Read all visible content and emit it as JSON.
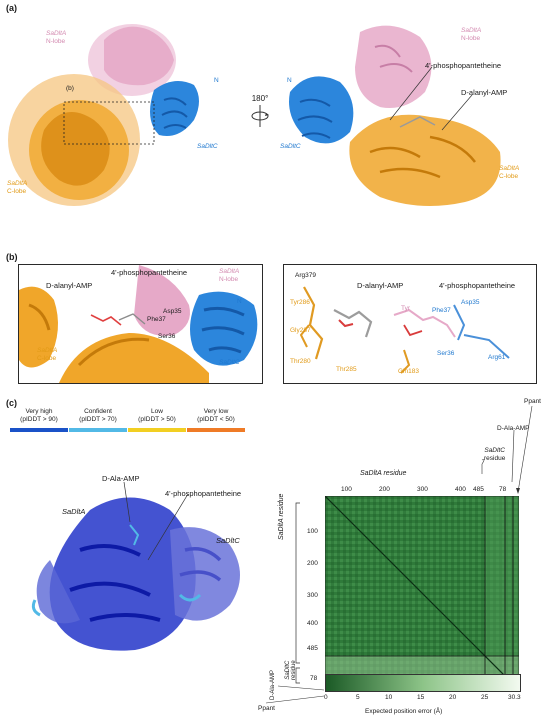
{
  "panel_a": {
    "label": "(a)",
    "inset_label": "(b)",
    "rotation": "180°",
    "left": {
      "n_lobe": [
        "SaDltA",
        "N-lobe"
      ],
      "c_lobe": [
        "SaDltA",
        "C-lobe"
      ],
      "dltc": "SaDltC",
      "n_term": "N"
    },
    "right": {
      "n_lobe": [
        "SaDltA",
        "N-lobe"
      ],
      "c_lobe": [
        "SaDltA",
        "C-lobe"
      ],
      "dltc": "SaDltC",
      "n_term": "N",
      "pant": "4'-phosphopantetheine",
      "amp": "D-alanyl-AMP"
    }
  },
  "panel_b": {
    "label": "(b)",
    "left": {
      "amp": "D-alanyl-AMP",
      "pant": "4'-phosphopantetheine",
      "n_lobe": [
        "SaDltA",
        "N-lobe"
      ],
      "c_lobe": [
        "SaDltA",
        "C-lobe"
      ],
      "dltc": "SaDltC",
      "n_term": "N",
      "res": [
        "Asp35",
        "Phe37",
        "Ser36"
      ]
    },
    "right": {
      "amp": "D-alanyl-AMP",
      "pant": "4'-phosphopantetheine",
      "res": [
        "Arg379",
        "Tyr286",
        "Gly287",
        "Thr280",
        "Thr285",
        "Tyr",
        "Phe37",
        "Asp35",
        "Ser36",
        "Gln183",
        "Arg61"
      ]
    }
  },
  "panel_c": {
    "label": "(c)",
    "legend": [
      {
        "title": "Very high",
        "sub": "(pIDDT > 90)",
        "color": "#1a52c8"
      },
      {
        "title": "Confident",
        "sub": "(pIDDT > 70)",
        "color": "#52b9e6"
      },
      {
        "title": "Low",
        "sub": "(pIDDT > 50)",
        "color": "#f2cf22"
      },
      {
        "title": "Very low",
        "sub": "(pIDDT < 50)",
        "color": "#ef7b26"
      }
    ],
    "structure": {
      "amp": "D-Ala-AMP",
      "pant": "4'-phosphopantetheine",
      "dlta": "SaDltA",
      "dltc": "SaDltC"
    },
    "pae": {
      "top_title": "SaDltA residue",
      "top_ticks": [
        "100",
        "200",
        "300",
        "400",
        "485"
      ],
      "dltc_res": [
        "SaDltC",
        "residue"
      ],
      "dltc_end": "78",
      "amp": "D-Ala-AMP",
      "pant": "Ppant",
      "left_title": "SaDltA residue",
      "left_ticks": [
        "100",
        "200",
        "300",
        "400",
        "485"
      ],
      "left_dltc": [
        "SaDltC",
        "residue"
      ],
      "left_dltc_end": "78",
      "left_amp": "D-Ala-AMP",
      "left_pant": "Ppant",
      "colorbar_ticks": [
        "0",
        "5",
        "10",
        "15",
        "20",
        "25",
        "30.3"
      ],
      "colorbar_title": "Expected position error (Å)"
    }
  },
  "colors": {
    "n_lobe": "#e6a9c8",
    "c_lobe": "#f0a62a",
    "dltc": "#2c86dc",
    "pae_dark": "#1b5a26",
    "pae_light": "#f3faf0"
  }
}
